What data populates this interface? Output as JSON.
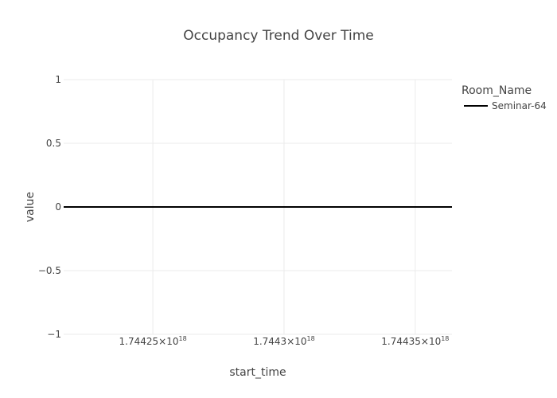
{
  "chart_data": {
    "type": "line",
    "title": "Occupancy Trend Over Time",
    "xlabel": "start_time",
    "ylabel": "value",
    "x_ticks": [
      {
        "value": 1.74425e+18,
        "mantissa": "1.74425",
        "base": "×10",
        "exp": "18"
      },
      {
        "value": 1.7443e+18,
        "mantissa": "1.7443",
        "base": "×10",
        "exp": "18"
      },
      {
        "value": 1.74435e+18,
        "mantissa": "1.74435",
        "base": "×10",
        "exp": "18"
      }
    ],
    "y_ticks": [
      "1",
      "0.5",
      "0",
      "−0.5",
      "−1"
    ],
    "y_tick_values": [
      1,
      0.5,
      0,
      -0.5,
      -1
    ],
    "xlim": [
      1.744216e+18,
      1.744364e+18
    ],
    "ylim": [
      -1,
      1
    ],
    "grid": true,
    "legend": {
      "title": "Room_Name",
      "position": "top-right"
    },
    "series": [
      {
        "name": "Seminar-64",
        "color": "#000000",
        "x": [
          1.744216e+18,
          1.744364e+18
        ],
        "y": [
          0,
          0
        ]
      }
    ]
  }
}
